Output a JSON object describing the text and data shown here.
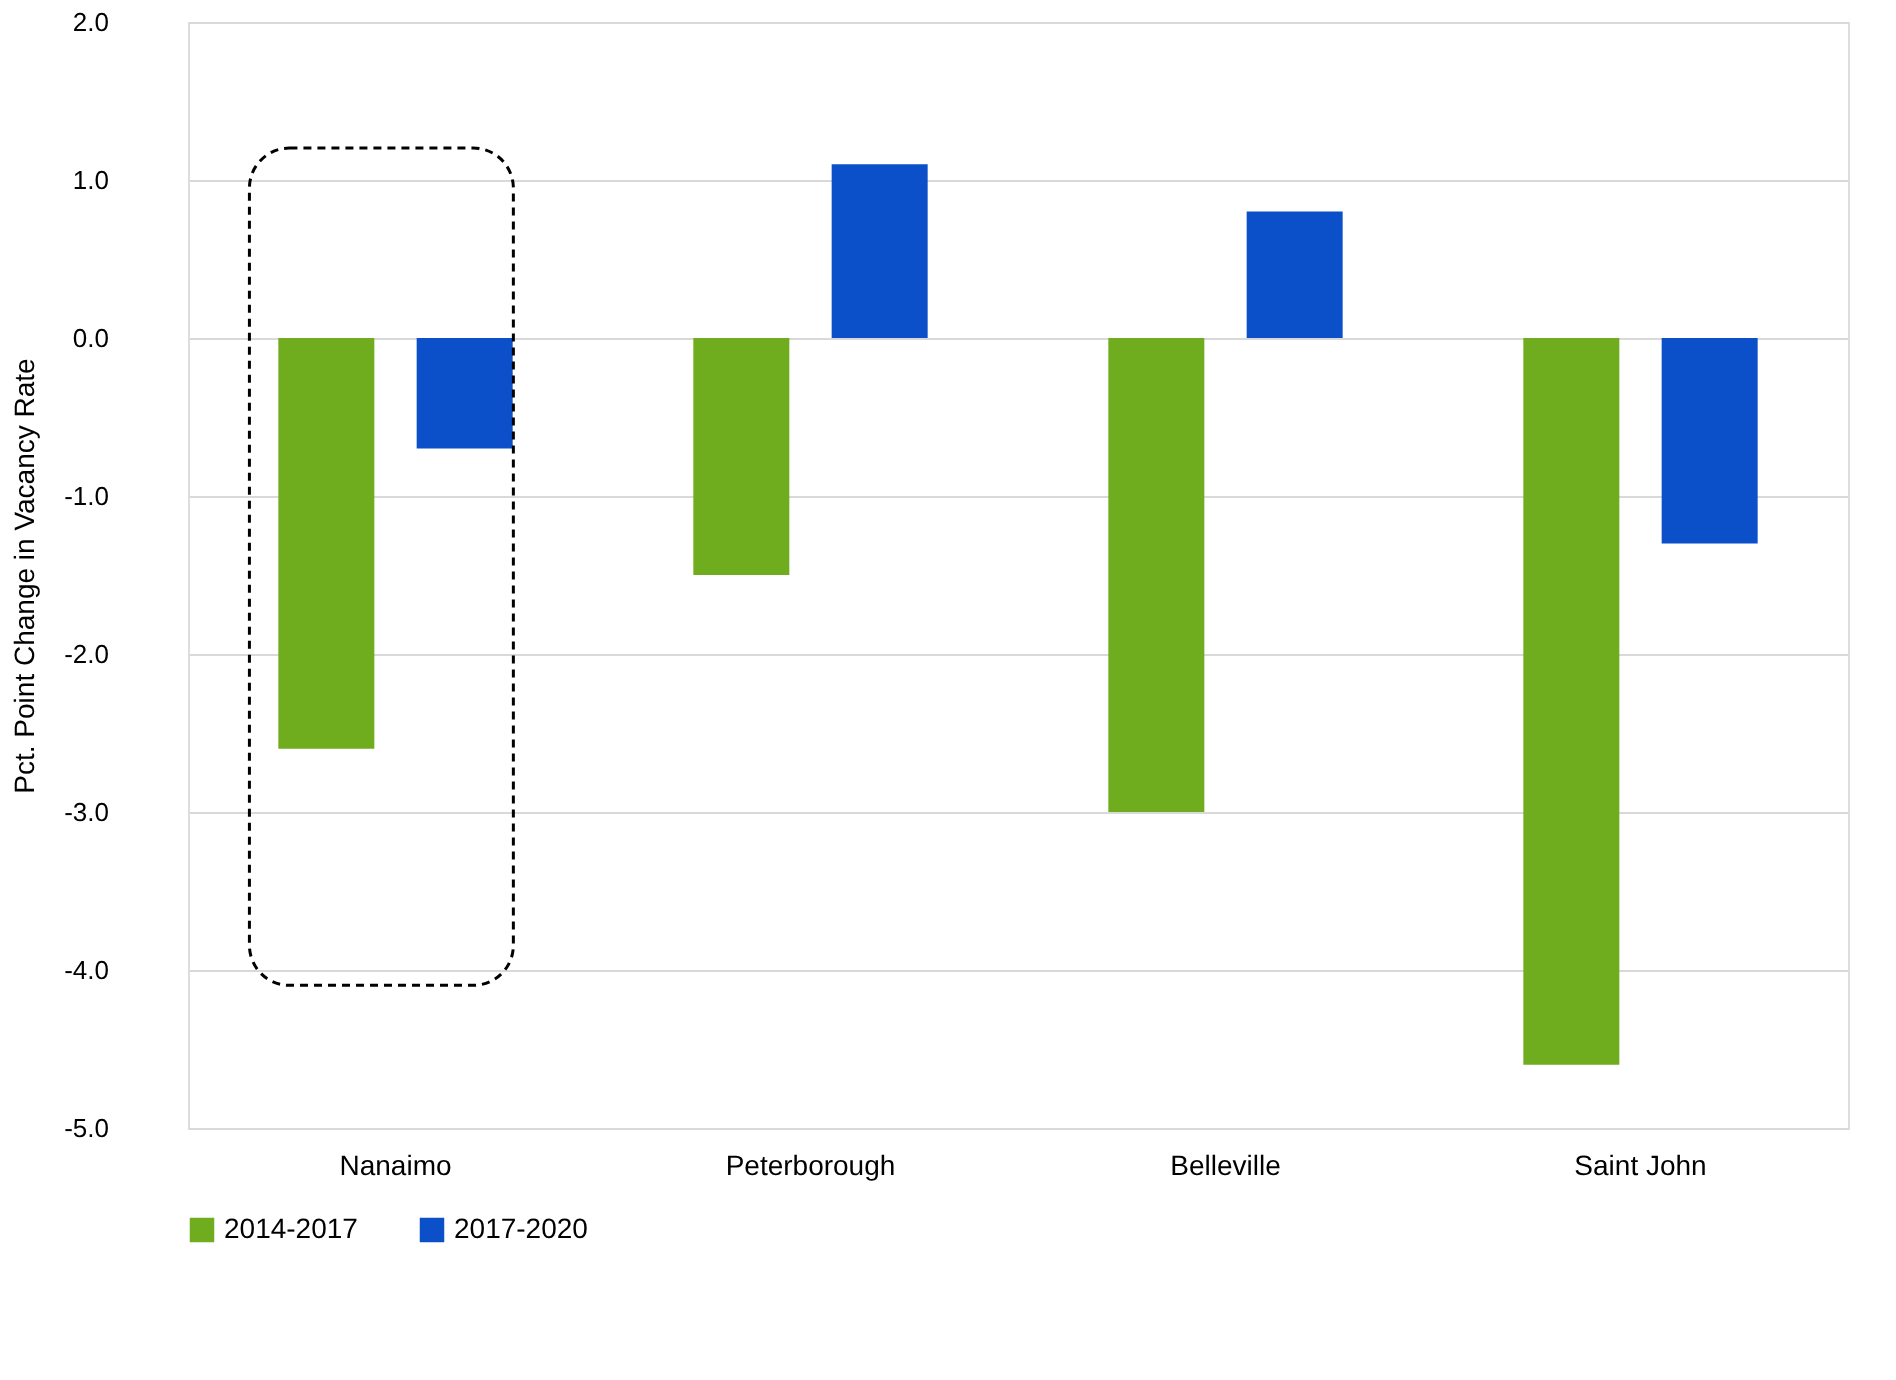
{
  "chart_data": {
    "type": "bar",
    "ylabel": "Pct. Point Change in Vacancy Rate",
    "categories": [
      "Nanaimo",
      "Peterborough",
      "Belleville",
      "Saint John"
    ],
    "series": [
      {
        "name": "2014-2017",
        "color": "#70ad1e",
        "values": [
          -2.6,
          -1.5,
          -3.0,
          -4.6
        ]
      },
      {
        "name": "2017-2020",
        "color": "#0b4fc9",
        "values": [
          -0.7,
          1.1,
          0.8,
          -1.3
        ]
      }
    ],
    "ylim": [
      -5.0,
      2.0
    ],
    "yticks": [
      {
        "value": -5,
        "label": "-5.0"
      },
      {
        "value": -4,
        "label": "-4.0"
      },
      {
        "value": -3,
        "label": "-3.0"
      },
      {
        "value": -2,
        "label": "-2.0"
      },
      {
        "value": -1,
        "label": "-1.0"
      },
      {
        "value": 0,
        "label": "0.0"
      },
      {
        "value": 1,
        "label": "1.0"
      },
      {
        "value": 2,
        "label": "2.0"
      }
    ],
    "grid": "y",
    "legend": "bottom"
  }
}
